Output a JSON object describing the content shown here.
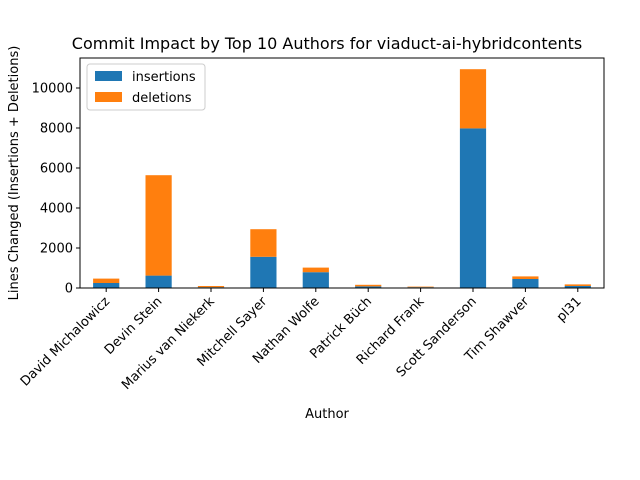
{
  "chart_data": {
    "type": "bar",
    "stacked": true,
    "title": "Commit Impact by Top 10 Authors for viaduct-ai-hybridcontents",
    "xlabel": "Author",
    "ylabel": "Lines Changed (Insertions + Deletions)",
    "ylim": [
      0,
      11500
    ],
    "yticks": [
      0,
      2000,
      4000,
      6000,
      8000,
      10000
    ],
    "categories": [
      "David Michalowicz",
      "Devin Stein",
      "Marius van Niekerk",
      "Mitchell Sayer",
      "Nathan Wolfe",
      "Patrick Büch",
      "Richard Frank",
      "Scott Sanderson",
      "Tim Shawver",
      "pl31"
    ],
    "series": [
      {
        "name": "insertions",
        "color": "#1f77b4",
        "values": [
          250,
          620,
          40,
          1560,
          790,
          80,
          40,
          7980,
          450,
          100
        ]
      },
      {
        "name": "deletions",
        "color": "#ff7f0e",
        "values": [
          220,
          5020,
          60,
          1380,
          230,
          80,
          30,
          2960,
          130,
          80
        ]
      }
    ],
    "legend": "upper-left",
    "grid": false
  }
}
